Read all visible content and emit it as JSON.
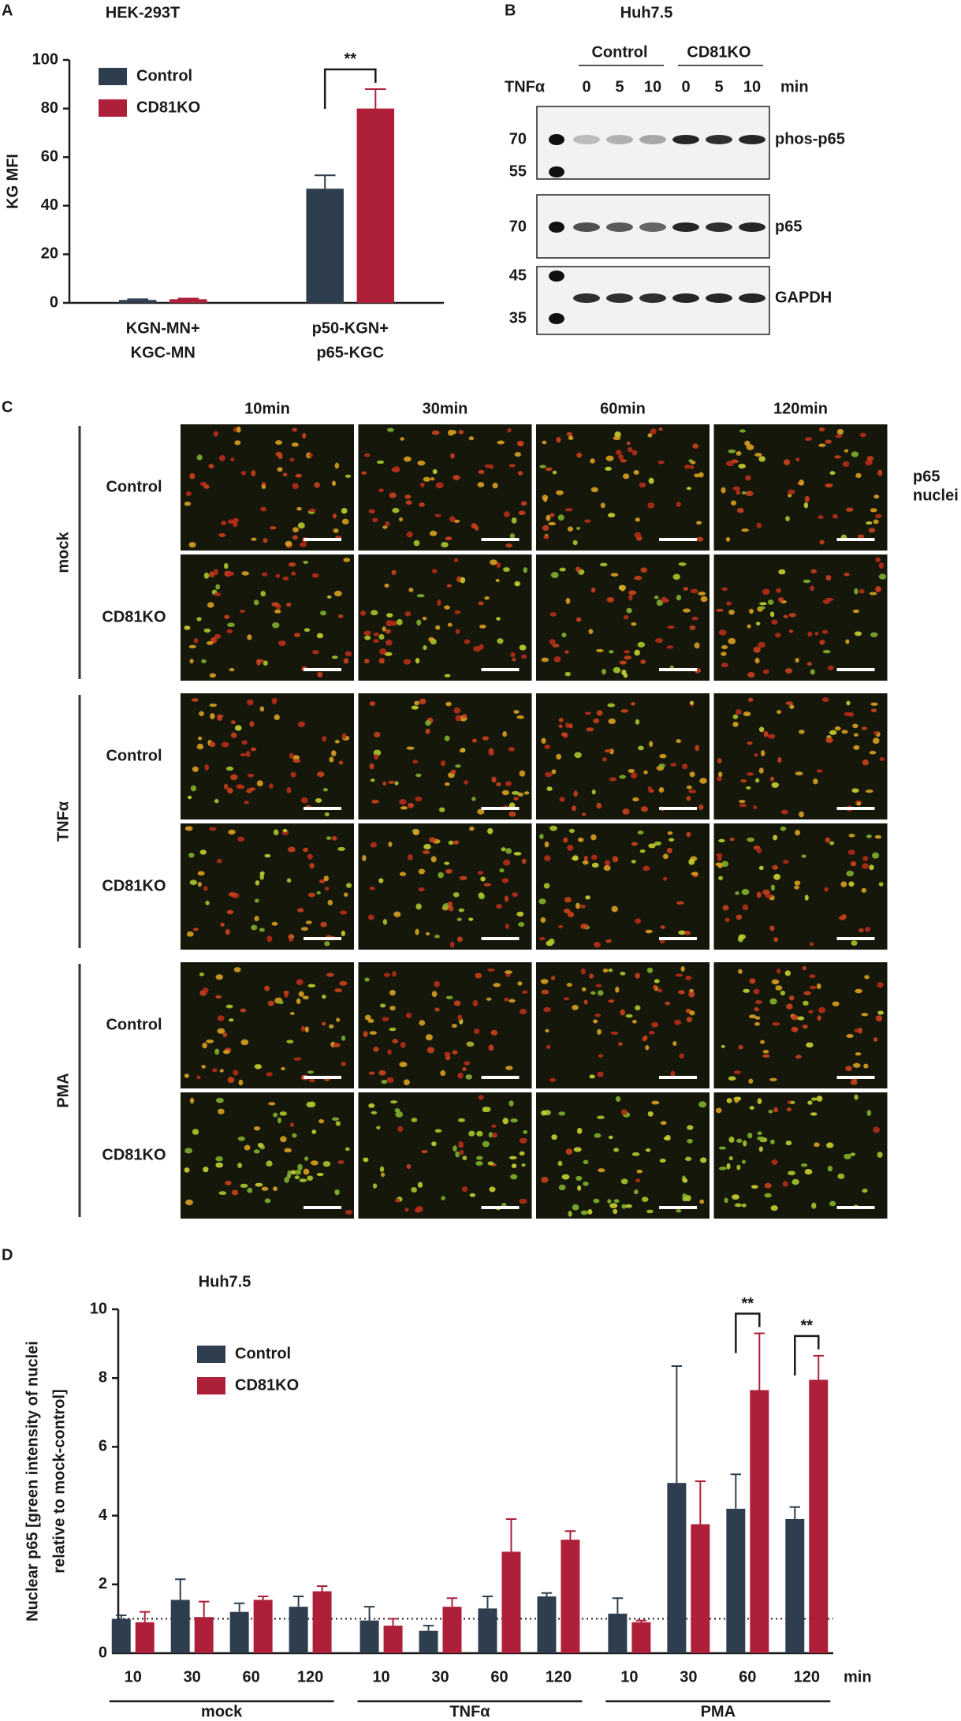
{
  "panel_labels": [
    "A",
    "B",
    "C",
    "D"
  ],
  "chart_data": [
    {
      "type": "bar",
      "title": "HEK-293T",
      "y_label": "KG MFI",
      "categories": [
        [
          "KGN-MN+",
          "KGC-MN"
        ],
        [
          "p50-KGN+",
          "p65-KGC"
        ]
      ],
      "series": [
        {
          "name": "Control",
          "color": "#2e3e4e",
          "values": [
            1.2,
            47
          ],
          "errors": [
            0.3,
            5.5
          ]
        },
        {
          "name": "CD81KO",
          "color": "#ae1f3a",
          "values": [
            1.5,
            80
          ],
          "errors": [
            0.3,
            8
          ]
        }
      ],
      "ylim": [
        0,
        100
      ],
      "yticks": [
        0,
        20,
        40,
        60,
        80,
        100
      ],
      "legend": "upper left",
      "significance": [
        {
          "label": "**",
          "category": 1
        }
      ]
    },
    {
      "type": "bar",
      "title": "Huh7.5",
      "y_label": [
        "Nuclear p65 [green intensity of nuclei",
        "relative to mock-control]"
      ],
      "x_label": "min",
      "categories": [
        "10",
        "30",
        "60",
        "120",
        "10",
        "30",
        "60",
        "120",
        "10",
        "30",
        "60",
        "120"
      ],
      "groups": [
        "mock",
        "TNFα",
        "PMA"
      ],
      "series": [
        {
          "name": "Control",
          "color": "#2e3e4e",
          "values": [
            1.0,
            1.55,
            1.2,
            1.35,
            0.95,
            0.65,
            1.3,
            1.65,
            1.15,
            4.95,
            4.2,
            3.9
          ],
          "errors": [
            0.1,
            0.6,
            0.25,
            0.3,
            0.4,
            0.15,
            0.35,
            0.1,
            0.45,
            3.4,
            1.0,
            0.35
          ]
        },
        {
          "name": "CD81KO",
          "color": "#ae1f3a",
          "values": [
            0.9,
            1.05,
            1.55,
            1.8,
            0.8,
            1.35,
            2.95,
            3.3,
            0.9,
            3.75,
            7.65,
            7.95
          ],
          "errors": [
            0.3,
            0.45,
            0.1,
            0.15,
            0.2,
            0.25,
            0.95,
            0.25,
            0.05,
            1.25,
            1.65,
            0.7
          ]
        }
      ],
      "ylim": [
        0,
        10
      ],
      "yticks": [
        0,
        2,
        4,
        6,
        8,
        10
      ],
      "reference_line": 1,
      "legend": "upper left",
      "significance": [
        {
          "label": "**",
          "category": 10
        },
        {
          "label": "**",
          "category": 11
        }
      ]
    }
  ],
  "blot": {
    "title": "Huh7.5",
    "groups": [
      "Control",
      "CD81KO"
    ],
    "treatment": "TNFα",
    "lanes": [
      "0",
      "5",
      "10",
      "0",
      "5",
      "10"
    ],
    "unit": "min",
    "strips": [
      {
        "label": "phos-p65",
        "markers": [
          "70",
          "55"
        ]
      },
      {
        "label": "p65",
        "markers": [
          "70"
        ]
      },
      {
        "label": "GAPDH",
        "markers": [
          "45",
          "35"
        ]
      }
    ]
  },
  "microscopy": {
    "columns": [
      "10min",
      "30min",
      "60min",
      "120min"
    ],
    "treatments": [
      "mock",
      "TNFα",
      "PMA"
    ],
    "rows": [
      "Control",
      "CD81KO"
    ],
    "channels": [
      {
        "name": "p65",
        "color": "#1ea84c"
      },
      {
        "name": "nuclei",
        "color": "#e2283c"
      }
    ]
  }
}
